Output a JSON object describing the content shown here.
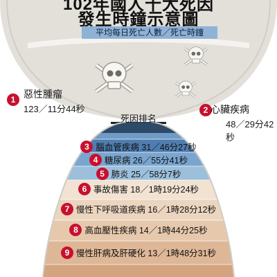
{
  "title_line1": "102年國人十大死因",
  "title_line2": "發生時鐘示意圖",
  "subtitle": "平均每日死亡人數／死亡時鐘",
  "rank_caption": "死因排名",
  "colors": {
    "badge": "#c8102e",
    "sand_top": "#e2e0d9",
    "band_blue_dark": "#4f7db0",
    "band_blue_light": "#9cc0dc",
    "band_tan": "#e9cfb6",
    "band_tan_dark": "#d9b08d",
    "subtitle_bg": "#8fb2d6"
  },
  "icons": [
    "skull-crossbones-icon"
  ],
  "chart_data": {
    "type": "table",
    "title": "102年國人十大死因發生時鐘示意圖",
    "subtitle": "平均每日死亡人數／死亡時鐘",
    "columns": [
      "rank",
      "cause",
      "daily_deaths",
      "death_clock"
    ],
    "rows": [
      {
        "rank": "1",
        "cause": "惡性腫瘤",
        "daily_deaths": 123,
        "clock": "11分44秒"
      },
      {
        "rank": "2",
        "cause": "心臟疾病",
        "daily_deaths": 48,
        "clock": "29分42秒"
      },
      {
        "rank": "3",
        "cause": "腦血管疾病",
        "daily_deaths": 31,
        "clock": "46分27秒"
      },
      {
        "rank": "4",
        "cause": "糖尿病",
        "daily_deaths": 26,
        "clock": "55分41秒"
      },
      {
        "rank": "5",
        "cause": "肺炎",
        "daily_deaths": 25,
        "clock": "58分7秒"
      },
      {
        "rank": "6",
        "cause": "事故傷害",
        "daily_deaths": 18,
        "clock": "1時19分24秒"
      },
      {
        "rank": "7",
        "cause": "慢性下呼吸道疾病",
        "daily_deaths": 16,
        "clock": "1時28分12秒"
      },
      {
        "rank": "8",
        "cause": "高血壓性疾病",
        "daily_deaths": 14,
        "clock": "1時44分25秒"
      },
      {
        "rank": "9",
        "cause": "慢性肝病及肝硬化",
        "daily_deaths": 13,
        "clock": "1時48分31秒"
      }
    ]
  }
}
